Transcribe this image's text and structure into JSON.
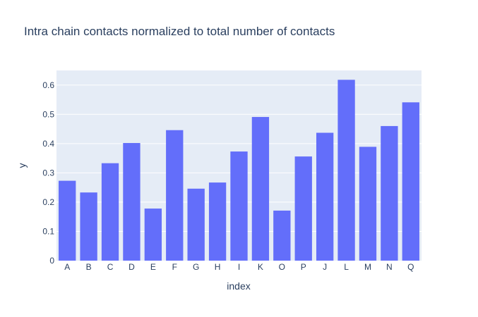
{
  "chart_data": {
    "type": "bar",
    "title": "Intra chain contacts normalized to total number of contacts",
    "xlabel": "index",
    "ylabel": "y",
    "categories": [
      "A",
      "B",
      "C",
      "D",
      "E",
      "F",
      "G",
      "H",
      "I",
      "K",
      "O",
      "P",
      "J",
      "L",
      "M",
      "N",
      "Q"
    ],
    "values": [
      0.273,
      0.233,
      0.333,
      0.402,
      0.178,
      0.446,
      0.246,
      0.267,
      0.373,
      0.491,
      0.171,
      0.356,
      0.437,
      0.618,
      0.389,
      0.46,
      0.541
    ],
    "ylim": [
      0,
      0.65
    ],
    "yticks": [
      0,
      0.1,
      0.2,
      0.3,
      0.4,
      0.5,
      0.6
    ],
    "ytick_labels": [
      "0",
      "0.1",
      "0.2",
      "0.3",
      "0.4",
      "0.5",
      "0.6"
    ],
    "grid": true,
    "colors": {
      "bar": "#636efa",
      "plot_bg": "#e5ecf6",
      "grid": "#ffffff",
      "text": "#2a3f5f"
    }
  }
}
